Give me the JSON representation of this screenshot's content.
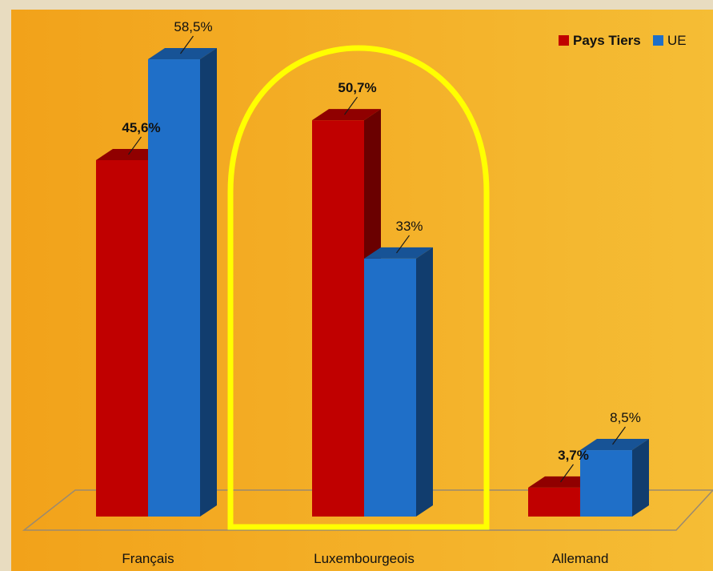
{
  "chart_data": {
    "type": "bar",
    "categories": [
      "Français",
      "Luxembourgeois",
      "Allemand"
    ],
    "series": [
      {
        "name": "Pays Tiers",
        "values": [
          45.6,
          50.7,
          3.7
        ],
        "labels": [
          "45,6%",
          "50,7%",
          "3,7%"
        ],
        "color": "#c00000"
      },
      {
        "name": "UE",
        "values": [
          58.5,
          33,
          8.5
        ],
        "labels": [
          "58,5%",
          "33%",
          "8,5%"
        ],
        "color": "#1f6fc8"
      }
    ],
    "ylim": [
      0,
      65
    ],
    "legend": "top-right",
    "grid": false,
    "highlight": {
      "category": "Luxembourgeois",
      "color": "#ffff00"
    }
  },
  "colors": {
    "background_left": "#f2a21a",
    "background_right": "#f5bd35",
    "frame": "#e8dcc0"
  }
}
